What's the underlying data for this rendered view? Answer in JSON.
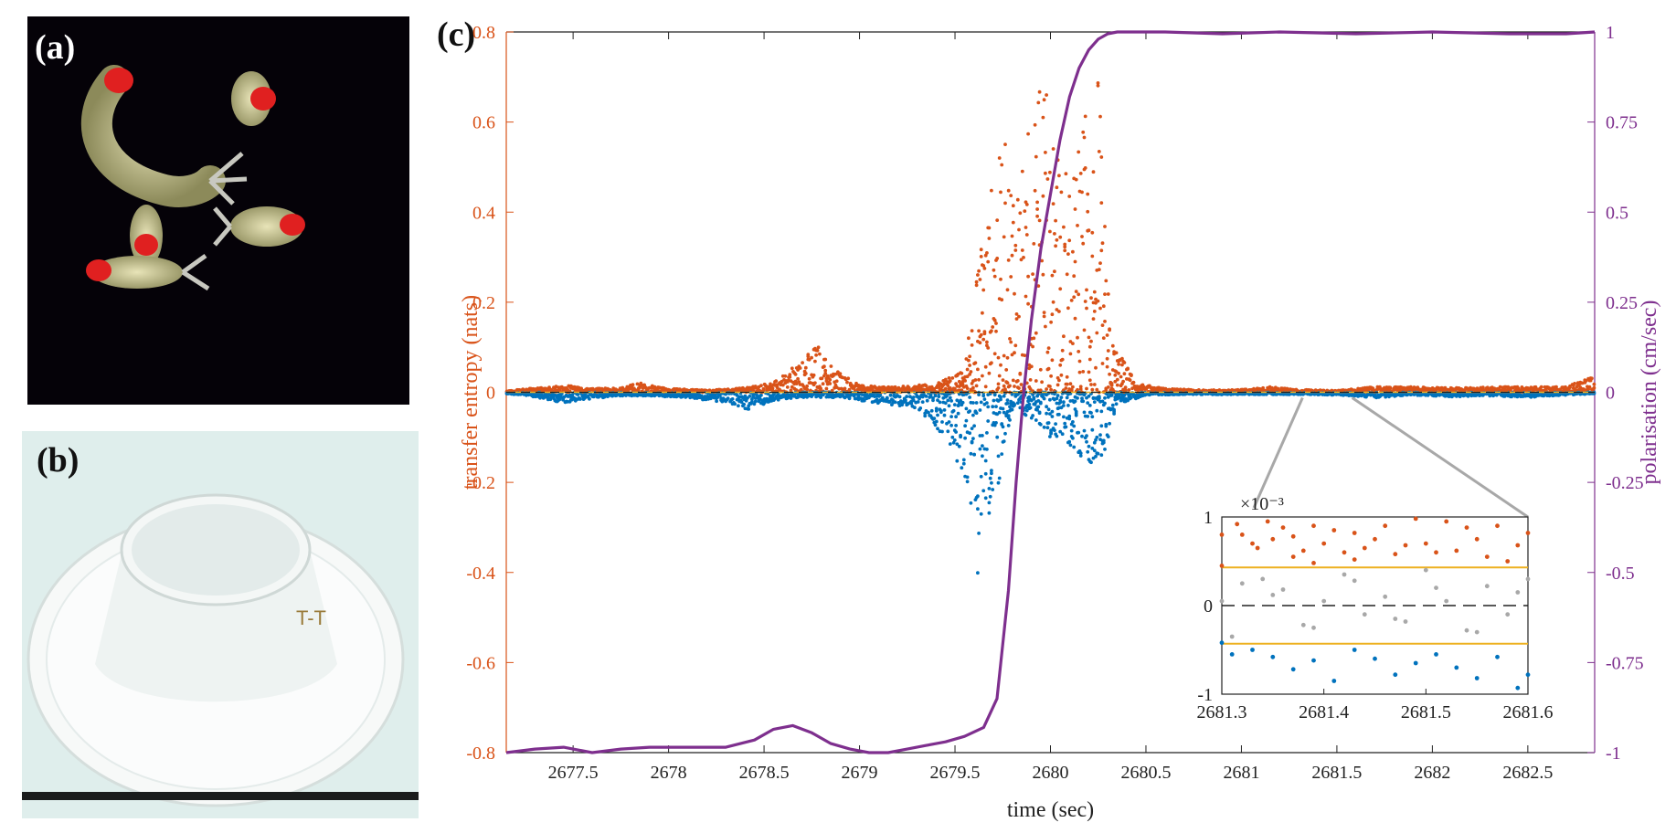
{
  "panels": {
    "a": "(a)",
    "b": "(b)",
    "c": "(c)"
  },
  "photo_b_marking": "T-T",
  "colors": {
    "orange": "#d95319",
    "blue": "#0072bd",
    "purple": "#7e2f8e",
    "grey": "#a8a8a8",
    "yellow": "#edb120"
  },
  "chart_data": [
    {
      "type": "scatter",
      "title": "",
      "xlabel": "time (sec)",
      "ylabel_left": "transfer entropy (nats)",
      "ylabel_right": "polarisation (cm/sec)",
      "xlim": [
        2677.15,
        2682.85
      ],
      "ylim_left": [
        -0.8,
        0.8
      ],
      "ylim_right": [
        -1,
        1
      ],
      "x_ticks": [
        2677.5,
        2678,
        2678.5,
        2679,
        2679.5,
        2680,
        2680.5,
        2681,
        2681.5,
        2682,
        2682.5
      ],
      "x_tick_labels": [
        "2677.5",
        "2678",
        "2678.5",
        "2679",
        "2679.5",
        "2680",
        "2680.5",
        "2681",
        "2681.5",
        "2682",
        "2682.5"
      ],
      "y_left_ticks": [
        -0.8,
        -0.6,
        -0.4,
        -0.2,
        0,
        0.2,
        0.4,
        0.6,
        0.8
      ],
      "y_left_tick_labels": [
        "-0.8",
        "-0.6",
        "-0.4",
        "-0.2",
        "0",
        "0.2",
        "0.4",
        "0.6",
        "0.8"
      ],
      "y_right_ticks": [
        -1,
        -0.75,
        -0.5,
        -0.25,
        0,
        0.25,
        0.5,
        0.75,
        1
      ],
      "y_right_tick_labels": [
        "-1",
        "-0.75",
        "-0.5",
        "-0.25",
        "0",
        "0.25",
        "0.5",
        "0.75",
        "1"
      ],
      "envelope_positive": {
        "x": [
          2677.15,
          2677.3,
          2677.45,
          2677.6,
          2677.75,
          2677.85,
          2678.0,
          2678.2,
          2678.4,
          2678.55,
          2678.7,
          2678.78,
          2678.85,
          2679.0,
          2679.2,
          2679.4,
          2679.55,
          2679.65,
          2679.75,
          2679.85,
          2679.95,
          2680.02,
          2680.1,
          2680.2,
          2680.25,
          2680.32,
          2680.45,
          2680.6,
          2680.8,
          2681.0,
          2681.15,
          2681.3,
          2681.5,
          2681.7,
          2681.9,
          2682.1,
          2682.3,
          2682.5,
          2682.7,
          2682.85
        ],
        "values": [
          0.003,
          0.01,
          0.016,
          0.008,
          0.01,
          0.022,
          0.008,
          0.005,
          0.01,
          0.022,
          0.075,
          0.11,
          0.06,
          0.015,
          0.012,
          0.02,
          0.05,
          0.4,
          0.57,
          0.5,
          0.75,
          0.58,
          0.47,
          0.68,
          0.71,
          0.12,
          0.02,
          0.008,
          0.005,
          0.006,
          0.012,
          0.006,
          0.004,
          0.012,
          0.012,
          0.01,
          0.012,
          0.012,
          0.012,
          0.04
        ]
      },
      "envelope_negative": {
        "x": [
          2677.15,
          2677.3,
          2677.45,
          2677.6,
          2677.75,
          2677.9,
          2678.1,
          2678.3,
          2678.4,
          2678.55,
          2678.7,
          2678.9,
          2679.1,
          2679.3,
          2679.45,
          2679.55,
          2679.62,
          2679.7,
          2679.78,
          2679.85,
          2679.92,
          2680.0,
          2680.1,
          2680.2,
          2680.28,
          2680.35,
          2680.5,
          2680.7,
          2680.9,
          2681.1,
          2681.3,
          2681.5,
          2681.7,
          2681.9,
          2682.1,
          2682.3,
          2682.5,
          2682.7,
          2682.85
        ],
        "values": [
          -0.003,
          -0.01,
          -0.024,
          -0.014,
          -0.008,
          -0.008,
          -0.012,
          -0.024,
          -0.042,
          -0.018,
          -0.012,
          -0.012,
          -0.024,
          -0.035,
          -0.1,
          -0.2,
          -0.42,
          -0.27,
          -0.08,
          -0.05,
          -0.06,
          -0.1,
          -0.12,
          -0.16,
          -0.14,
          -0.03,
          -0.006,
          -0.005,
          -0.005,
          -0.005,
          -0.005,
          -0.006,
          -0.012,
          -0.006,
          -0.01,
          -0.008,
          -0.012,
          -0.006,
          -0.003
        ]
      },
      "polarisation_line": {
        "x": [
          2677.15,
          2677.3,
          2677.45,
          2677.6,
          2677.75,
          2677.9,
          2678.1,
          2678.3,
          2678.45,
          2678.55,
          2678.65,
          2678.75,
          2678.85,
          2678.95,
          2679.05,
          2679.15,
          2679.25,
          2679.35,
          2679.45,
          2679.55,
          2679.65,
          2679.72,
          2679.78,
          2679.82,
          2679.86,
          2679.9,
          2679.95,
          2680.0,
          2680.05,
          2680.1,
          2680.15,
          2680.2,
          2680.25,
          2680.3,
          2680.35,
          2680.4,
          2680.6,
          2680.9,
          2681.2,
          2681.6,
          2682.0,
          2682.4,
          2682.7,
          2682.85
        ],
        "values": [
          -1.0,
          -0.99,
          -0.985,
          -1.0,
          -0.99,
          -0.985,
          -0.985,
          -0.985,
          -0.965,
          -0.935,
          -0.925,
          -0.945,
          -0.975,
          -0.99,
          -1.0,
          -1.0,
          -0.99,
          -0.98,
          -0.97,
          -0.955,
          -0.93,
          -0.85,
          -0.55,
          -0.25,
          0.0,
          0.2,
          0.4,
          0.55,
          0.7,
          0.82,
          0.9,
          0.95,
          0.98,
          0.995,
          1.0,
          1.0,
          1.0,
          0.995,
          1.0,
          0.995,
          1.0,
          0.995,
          0.995,
          1.0
        ]
      },
      "legend": "none",
      "grid": false
    },
    {
      "type": "scatter",
      "xlim": [
        2681.3,
        2681.6
      ],
      "ylim": [
        -1,
        1
      ],
      "x_ticks": [
        2681.3,
        2681.4,
        2681.5,
        2681.6
      ],
      "x_tick_labels": [
        "2681.3",
        "2681.4",
        "2681.5",
        "2681.6"
      ],
      "y_ticks": [
        -1,
        0,
        1
      ],
      "y_tick_labels": [
        "-1",
        "0",
        "1"
      ],
      "y_scale_label": "×10⁻³",
      "threshold_upper": 0.43,
      "threshold_lower": -0.43,
      "orange_points": {
        "x": [
          2681.3,
          2681.3,
          2681.315,
          2681.32,
          2681.33,
          2681.335,
          2681.345,
          2681.35,
          2681.36,
          2681.37,
          2681.37,
          2681.38,
          2681.39,
          2681.39,
          2681.4,
          2681.41,
          2681.42,
          2681.43,
          2681.43,
          2681.44,
          2681.45,
          2681.46,
          2681.47,
          2681.48,
          2681.49,
          2681.5,
          2681.51,
          2681.52,
          2681.53,
          2681.54,
          2681.55,
          2681.56,
          2681.57,
          2681.58,
          2681.59,
          2681.6
        ],
        "values": [
          0.8,
          0.45,
          0.92,
          0.8,
          0.7,
          0.65,
          0.95,
          0.75,
          0.88,
          0.55,
          0.78,
          0.62,
          0.9,
          0.48,
          0.7,
          0.85,
          0.6,
          0.82,
          0.52,
          0.65,
          0.75,
          0.9,
          0.58,
          0.68,
          0.98,
          0.7,
          0.6,
          0.95,
          0.62,
          0.88,
          0.75,
          0.55,
          0.9,
          0.5,
          0.68,
          0.82
        ]
      },
      "grey_points": {
        "x": [
          2681.3,
          2681.32,
          2681.34,
          2681.36,
          2681.38,
          2681.4,
          2681.42,
          2681.44,
          2681.46,
          2681.48,
          2681.5,
          2681.52,
          2681.54,
          2681.56,
          2681.58,
          2681.6,
          2681.31,
          2681.35,
          2681.39,
          2681.43,
          2681.47,
          2681.51,
          2681.55,
          2681.59
        ],
        "values": [
          0.05,
          0.25,
          0.3,
          0.18,
          -0.22,
          0.05,
          0.35,
          -0.1,
          0.1,
          -0.18,
          0.4,
          0.05,
          -0.28,
          0.22,
          -0.1,
          0.3,
          -0.35,
          0.12,
          -0.25,
          0.28,
          -0.15,
          0.2,
          -0.3,
          0.15
        ]
      },
      "blue_points": {
        "x": [
          2681.3,
          2681.31,
          2681.33,
          2681.35,
          2681.37,
          2681.39,
          2681.41,
          2681.43,
          2681.45,
          2681.47,
          2681.49,
          2681.51,
          2681.53,
          2681.55,
          2681.57,
          2681.59,
          2681.6
        ],
        "values": [
          -0.42,
          -0.55,
          -0.5,
          -0.58,
          -0.72,
          -0.62,
          -0.85,
          -0.5,
          -0.6,
          -0.78,
          -0.65,
          -0.55,
          -0.7,
          -0.82,
          -0.58,
          -0.93,
          -0.78
        ]
      }
    }
  ]
}
